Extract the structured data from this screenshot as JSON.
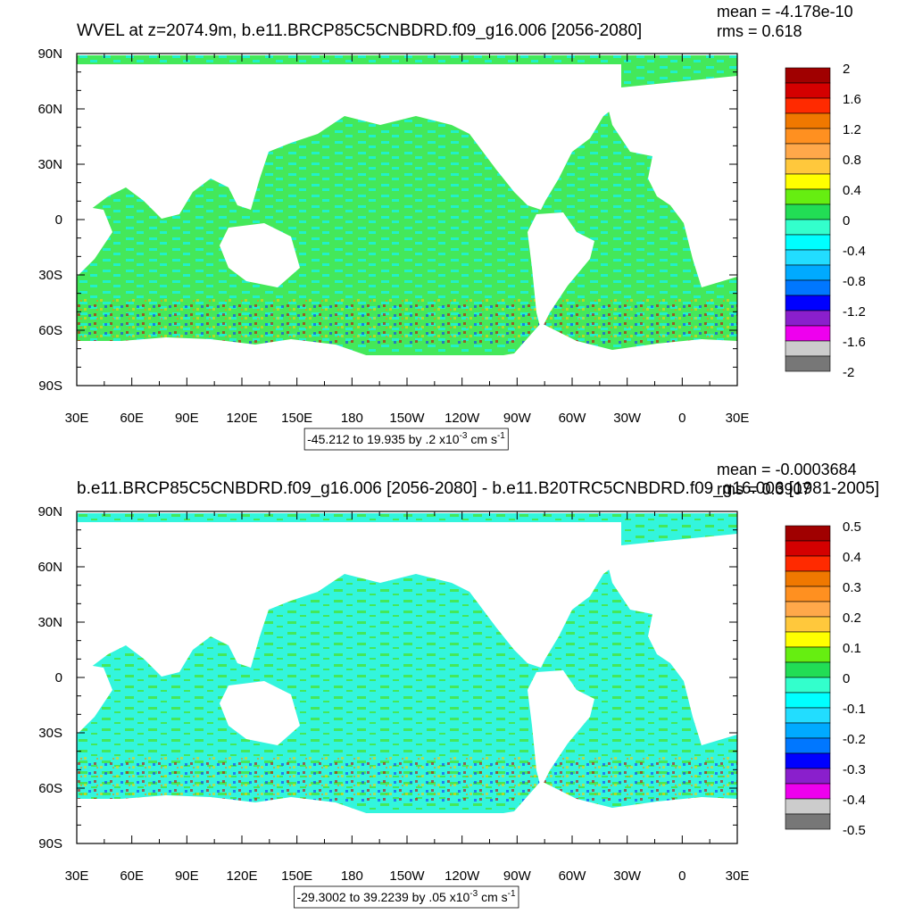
{
  "panels": [
    {
      "title": "WVEL at z=2074.9m, b.e11.BRCP85C5CNBDRD.f09_g16.006 [2056-2080]",
      "mean": "mean = -4.178e-10",
      "rms": "rms = 0.618",
      "x_axis_labels": [
        "30E",
        "60E",
        "90E",
        "120E",
        "150E",
        "180",
        "150W",
        "120W",
        "90W",
        "60W",
        "30W",
        "0",
        "30E"
      ],
      "y_axis_labels": [
        "90N",
        "60N",
        "30N",
        "0",
        "30S",
        "60S",
        "90S"
      ],
      "colorbar": {
        "labels": [
          "2",
          "1.6",
          "1.2",
          "0.8",
          "0.4",
          "0",
          "-0.4",
          "-0.8",
          "-1.2",
          "-1.6",
          "-2"
        ],
        "colors": [
          "#a00000",
          "#d40000",
          "#ff2a00",
          "#f07800",
          "#ff9020",
          "#ffa84a",
          "#ffc83c",
          "#ffff00",
          "#66ee11",
          "#22dd55",
          "#33ffcc",
          "#00ffff",
          "#22ddff",
          "#00aaff",
          "#0077ff",
          "#0000ff",
          "#8a1fcc",
          "#ee00ee",
          "#cccccc",
          "#777777"
        ]
      },
      "info": {
        "range": "-45.212 to 19.935 by .2 x10",
        "exponent": "-3",
        "units": " cm s",
        "units_exponent": "-1"
      }
    },
    {
      "title": "b.e11.BRCP85C5CNBDRD.f09_g16.006 [2056-2080] - b.e11.B20TRC5CNBDRD.f09_g16.006 [1981-2005]",
      "mean": "mean = -0.0003684",
      "rms": "rms = 0.3907",
      "x_axis_labels": [
        "30E",
        "60E",
        "90E",
        "120E",
        "150E",
        "180",
        "150W",
        "120W",
        "90W",
        "60W",
        "30W",
        "0",
        "30E"
      ],
      "y_axis_labels": [
        "90N",
        "60N",
        "30N",
        "0",
        "30S",
        "60S",
        "90S"
      ],
      "colorbar": {
        "labels": [
          "0.5",
          "0.4",
          "0.3",
          "0.2",
          "0.1",
          "0",
          "-0.1",
          "-0.2",
          "-0.3",
          "-0.4",
          "-0.5"
        ],
        "colors": [
          "#a00000",
          "#d40000",
          "#ff2a00",
          "#f07800",
          "#ff9020",
          "#ffa84a",
          "#ffc83c",
          "#ffff00",
          "#66ee11",
          "#22dd55",
          "#33ffcc",
          "#00ffff",
          "#22ddff",
          "#00aaff",
          "#0077ff",
          "#0000ff",
          "#8a1fcc",
          "#ee00ee",
          "#cccccc",
          "#777777"
        ]
      },
      "info": {
        "range": "-29.3002 to 39.2239 by .05 x10",
        "exponent": "-3",
        "units": " cm s",
        "units_exponent": "-1"
      }
    }
  ]
}
